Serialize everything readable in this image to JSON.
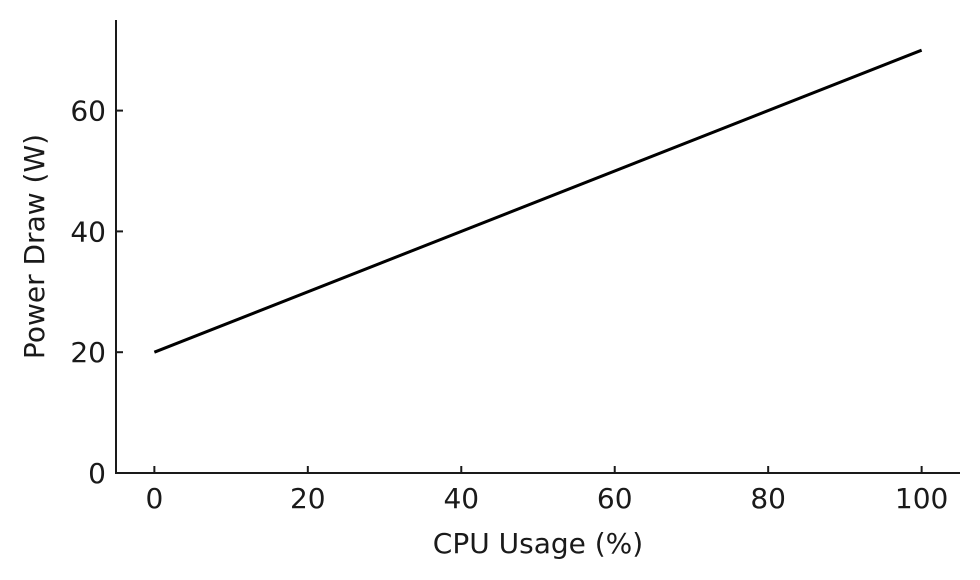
{
  "chart_data": {
    "type": "line",
    "title": "",
    "xlabel": "CPU Usage (%)",
    "ylabel": "Power Draw (W)",
    "xlim": [
      -5,
      105
    ],
    "ylim": [
      0,
      75
    ],
    "xticks": [
      0,
      20,
      40,
      60,
      80,
      100
    ],
    "yticks": [
      0,
      20,
      40,
      60
    ],
    "grid": false,
    "series": [
      {
        "color": "#000000",
        "x": [
          0,
          100
        ],
        "y": [
          20,
          70
        ]
      }
    ]
  }
}
